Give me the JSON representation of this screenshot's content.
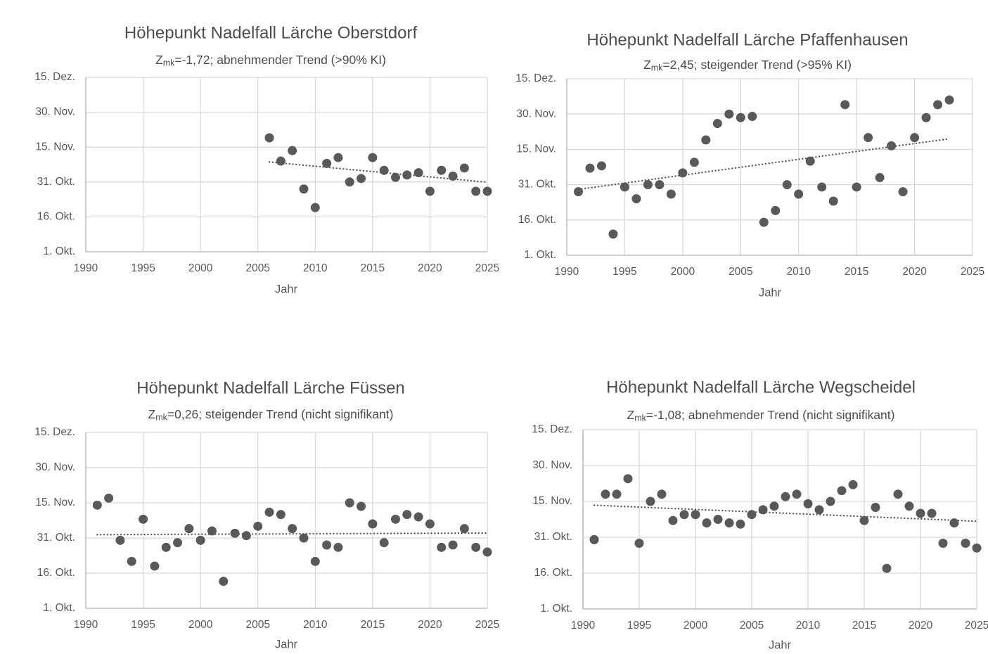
{
  "page": {
    "background": "#ffffff",
    "description_units": "y axis shown as dates; values stored as days after 1. Okt. (0 = 1. Okt., 15 = 16. Okt., 30 = 31. Okt., 45 = 15. Nov., 60 = 30. Nov., 75 = 15. Dez.)"
  },
  "colors": {
    "point": "#595959",
    "trend": "#595959",
    "grid": "#d9d9d9",
    "axis": "#bfbfbf",
    "title_text": "#4d4d4d",
    "tick_text": "#595959"
  },
  "chart_data": [
    {
      "type": "scatter",
      "title": "Höhepunkt Nadelfall Lärche Oberstdorf",
      "subtitle": {
        "prefix": "Z",
        "sub": "mk",
        "text": "=-1,72; abnehmender Trend (>90% KI)"
      },
      "subtitle_plain": "Zmk=-1,72; abnehmender Trend (>90% KI)",
      "xlabel": "Jahr",
      "xlim": [
        1990,
        2025
      ],
      "ylim": [
        0,
        75
      ],
      "x_ticks": [
        1990,
        1995,
        2000,
        2005,
        2010,
        2015,
        2020,
        2025
      ],
      "y_tick_values": [
        0,
        15,
        30,
        45,
        60,
        75
      ],
      "y_tick_labels": [
        "1. Okt.",
        "16. Okt.",
        "31. Okt.",
        "15. Nov.",
        "30. Nov.",
        "15. Dez."
      ],
      "grid": true,
      "legend": false,
      "points": [
        [
          2006,
          49
        ],
        [
          2007,
          39
        ],
        [
          2008,
          43.5
        ],
        [
          2009,
          27
        ],
        [
          2010,
          19
        ],
        [
          2011,
          38
        ],
        [
          2012,
          40.5
        ],
        [
          2013,
          30
        ],
        [
          2014,
          31.5
        ],
        [
          2015,
          40.5
        ],
        [
          2016,
          35
        ],
        [
          2017,
          32
        ],
        [
          2018,
          33
        ],
        [
          2019,
          34
        ],
        [
          2020,
          26
        ],
        [
          2021,
          35
        ],
        [
          2022,
          32.5
        ],
        [
          2023,
          36
        ],
        [
          2024,
          26
        ],
        [
          2025,
          26
        ]
      ],
      "trend": [
        [
          2006,
          38.6
        ],
        [
          2025,
          29.9
        ]
      ]
    },
    {
      "type": "scatter",
      "title": "Höhepunkt Nadelfall Lärche Pfaffenhausen",
      "subtitle": {
        "prefix": "Z",
        "sub": "mk",
        "text": "=2,45; steigender Trend (>95% KI)"
      },
      "subtitle_plain": "Zmk=2,45; steigender Trend (>95% KI)",
      "xlabel": "Jahr",
      "xlim": [
        1990,
        2025
      ],
      "ylim": [
        0,
        75
      ],
      "x_ticks": [
        1990,
        1995,
        2000,
        2005,
        2010,
        2015,
        2020,
        2025
      ],
      "y_tick_values": [
        0,
        15,
        30,
        45,
        60,
        75
      ],
      "y_tick_labels": [
        "1. Okt.",
        "16. Okt.",
        "31. Okt.",
        "15. Nov.",
        "30. Nov.",
        "15. Dez."
      ],
      "grid": true,
      "legend": false,
      "points": [
        [
          1991,
          27
        ],
        [
          1992,
          37
        ],
        [
          1993,
          38
        ],
        [
          1994,
          9
        ],
        [
          1995,
          29
        ],
        [
          1996,
          24
        ],
        [
          1997,
          30
        ],
        [
          1998,
          30
        ],
        [
          1999,
          26
        ],
        [
          2000,
          35
        ],
        [
          2001,
          39.5
        ],
        [
          2002,
          49
        ],
        [
          2003,
          56
        ],
        [
          2004,
          60
        ],
        [
          2005,
          58.5
        ],
        [
          2006,
          59
        ],
        [
          2007,
          14
        ],
        [
          2008,
          19
        ],
        [
          2009,
          30
        ],
        [
          2010,
          26
        ],
        [
          2011,
          40
        ],
        [
          2012,
          29
        ],
        [
          2013,
          23
        ],
        [
          2014,
          64
        ],
        [
          2015,
          29
        ],
        [
          2016,
          50
        ],
        [
          2017,
          33
        ],
        [
          2018,
          46.5
        ],
        [
          2019,
          27
        ],
        [
          2020,
          50
        ],
        [
          2021,
          58.5
        ],
        [
          2022,
          64
        ],
        [
          2023,
          66
        ]
      ],
      "trend": [
        [
          1991,
          28
        ],
        [
          2023,
          49.5
        ]
      ]
    },
    {
      "type": "scatter",
      "title": "Höhepunkt Nadelfall Lärche Füssen",
      "subtitle": {
        "prefix": "Z",
        "sub": "mk",
        "text": "=0,26; steigender Trend (nicht signifikant)"
      },
      "subtitle_plain": "Zmk=0,26; steigender Trend (nicht signifikant)",
      "xlabel": "Jahr",
      "xlim": [
        1990,
        2025
      ],
      "ylim": [
        0,
        75
      ],
      "x_ticks": [
        1990,
        1995,
        2000,
        2005,
        2010,
        2015,
        2020,
        2025
      ],
      "y_tick_values": [
        0,
        15,
        30,
        45,
        60,
        75
      ],
      "y_tick_labels": [
        "1. Okt.",
        "16. Okt.",
        "31. Okt.",
        "15. Nov.",
        "30. Nov.",
        "15. Dez."
      ],
      "grid": true,
      "legend": false,
      "points": [
        [
          1991,
          44
        ],
        [
          1992,
          47
        ],
        [
          1993,
          29
        ],
        [
          1994,
          20
        ],
        [
          1995,
          38
        ],
        [
          1996,
          18
        ],
        [
          1997,
          26
        ],
        [
          1998,
          28
        ],
        [
          1999,
          34
        ],
        [
          2000,
          29
        ],
        [
          2001,
          33
        ],
        [
          2002,
          11.5
        ],
        [
          2003,
          32
        ],
        [
          2004,
          31
        ],
        [
          2005,
          35
        ],
        [
          2006,
          41
        ],
        [
          2007,
          40
        ],
        [
          2008,
          34
        ],
        [
          2009,
          30
        ],
        [
          2010,
          20
        ],
        [
          2011,
          27
        ],
        [
          2012,
          26
        ],
        [
          2013,
          45
        ],
        [
          2014,
          43.5
        ],
        [
          2015,
          36
        ],
        [
          2016,
          28
        ],
        [
          2017,
          38
        ],
        [
          2018,
          40
        ],
        [
          2019,
          39
        ],
        [
          2020,
          36
        ],
        [
          2021,
          26
        ],
        [
          2022,
          27
        ],
        [
          2023,
          34
        ],
        [
          2024,
          26
        ],
        [
          2025,
          24
        ]
      ],
      "trend": [
        [
          1991,
          31.4
        ],
        [
          2025,
          32.1
        ]
      ]
    },
    {
      "type": "scatter",
      "title": "Höhepunkt Nadelfall Lärche Wegscheidel",
      "subtitle": {
        "prefix": "Z",
        "sub": "mk",
        "text": "=-1,08; abnehmender Trend (nicht signifikant)"
      },
      "subtitle_plain": "Zmk=-1,08; abnehmender Trend (nicht signifikant)",
      "xlabel": "Jahr",
      "xlim": [
        1990,
        2025
      ],
      "ylim": [
        0,
        75
      ],
      "x_ticks": [
        1990,
        1995,
        2000,
        2005,
        2010,
        2015,
        2020,
        2025
      ],
      "y_tick_values": [
        0,
        15,
        30,
        45,
        60,
        75
      ],
      "y_tick_labels": [
        "1. Okt.",
        "16. Okt.",
        "31. Okt.",
        "15. Nov.",
        "30. Nov.",
        "15. Dez."
      ],
      "grid": true,
      "legend": false,
      "points": [
        [
          1991,
          29
        ],
        [
          1992,
          48
        ],
        [
          1993,
          48
        ],
        [
          1994,
          54.5
        ],
        [
          1995,
          27.5
        ],
        [
          1996,
          45
        ],
        [
          1997,
          48
        ],
        [
          1998,
          37
        ],
        [
          1999,
          39.5
        ],
        [
          2000,
          39.5
        ],
        [
          2001,
          36
        ],
        [
          2002,
          37.5
        ],
        [
          2003,
          36
        ],
        [
          2004,
          35.5
        ],
        [
          2005,
          39.5
        ],
        [
          2006,
          41.5
        ],
        [
          2007,
          43
        ],
        [
          2008,
          47
        ],
        [
          2009,
          48
        ],
        [
          2010,
          44
        ],
        [
          2011,
          41.5
        ],
        [
          2012,
          45
        ],
        [
          2013,
          49.5
        ],
        [
          2014,
          52
        ],
        [
          2015,
          37
        ],
        [
          2016,
          42.5
        ],
        [
          2017,
          17
        ],
        [
          2018,
          48
        ],
        [
          2019,
          43
        ],
        [
          2020,
          40
        ],
        [
          2021,
          40
        ],
        [
          2022,
          27.5
        ],
        [
          2023,
          36
        ],
        [
          2024,
          27.5
        ],
        [
          2025,
          25.5
        ]
      ],
      "trend": [
        [
          1991,
          43.4
        ],
        [
          2025,
          36.7
        ]
      ]
    }
  ]
}
